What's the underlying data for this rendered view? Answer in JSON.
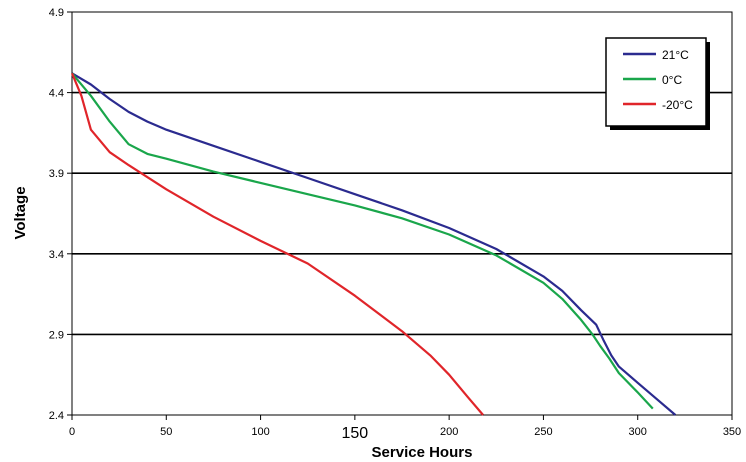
{
  "chart_data": {
    "type": "line",
    "title": "",
    "xlabel": "Service Hours",
    "ylabel": "Voltage",
    "xlim": [
      0,
      350
    ],
    "ylim": [
      2.4,
      4.9
    ],
    "x_ticks": [
      "0",
      "50",
      "100",
      "150",
      "200",
      "250",
      "300",
      "350"
    ],
    "y_ticks": [
      "2.4",
      "2.9",
      "3.4",
      "3.9",
      "4.4",
      "4.9"
    ],
    "grid": "horizontal",
    "legend_position": "top-right",
    "series": [
      {
        "name": "21°C",
        "color": "#2b2b8f",
        "x": [
          0,
          10,
          20,
          30,
          40,
          50,
          75,
          100,
          125,
          150,
          175,
          200,
          225,
          250,
          260,
          270,
          278,
          282,
          286,
          290,
          300,
          310,
          320
        ],
        "y": [
          4.52,
          4.45,
          4.36,
          4.28,
          4.22,
          4.17,
          4.07,
          3.97,
          3.87,
          3.77,
          3.67,
          3.56,
          3.43,
          3.26,
          3.17,
          3.05,
          2.96,
          2.86,
          2.77,
          2.7,
          2.6,
          2.5,
          2.4
        ]
      },
      {
        "name": "0°C",
        "color": "#1aa64b",
        "x": [
          0,
          10,
          20,
          30,
          40,
          50,
          75,
          100,
          125,
          150,
          175,
          200,
          225,
          250,
          260,
          270,
          276,
          280,
          285,
          290,
          300,
          308
        ],
        "y": [
          4.52,
          4.38,
          4.22,
          4.08,
          4.02,
          3.99,
          3.91,
          3.84,
          3.77,
          3.7,
          3.62,
          3.52,
          3.39,
          3.22,
          3.12,
          2.99,
          2.9,
          2.83,
          2.75,
          2.66,
          2.54,
          2.44
        ]
      },
      {
        "name": "-20°C",
        "color": "#e0252a",
        "x": [
          0,
          5,
          10,
          20,
          30,
          50,
          75,
          100,
          125,
          150,
          175,
          190,
          200,
          210,
          218
        ],
        "y": [
          4.52,
          4.38,
          4.17,
          4.03,
          3.95,
          3.8,
          3.63,
          3.48,
          3.34,
          3.14,
          2.92,
          2.77,
          2.65,
          2.51,
          2.4
        ]
      }
    ]
  }
}
